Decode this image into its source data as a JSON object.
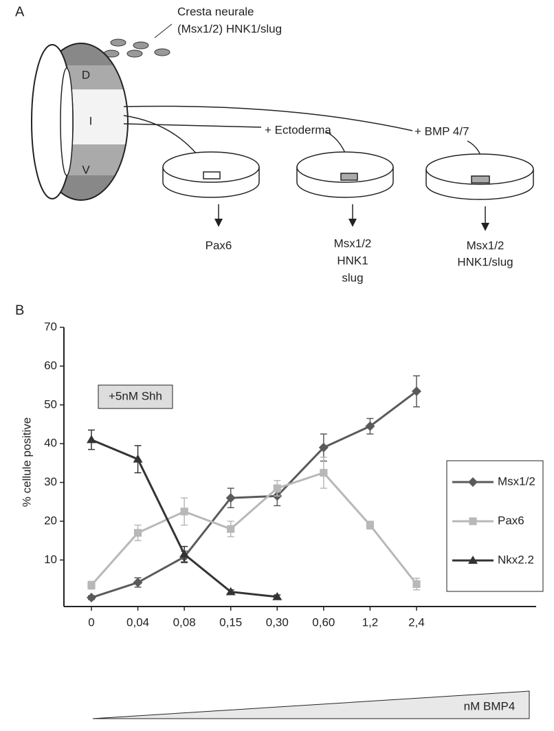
{
  "panel_a": {
    "label": "A",
    "crest_title": "Cresta neurale",
    "crest_markers": "(Msx1/2) HNK1/slug",
    "regions": [
      "D",
      "I",
      "V"
    ],
    "treatments": [
      "+ Ectoderma",
      "+ BMP 4/7"
    ],
    "results": [
      [
        "Pax6"
      ],
      [
        "Msx1/2",
        "HNK1",
        "slug"
      ],
      [
        "Msx1/2",
        "HNK1/slug"
      ]
    ]
  },
  "chart_data": {
    "type": "line",
    "panel_label": "B",
    "y_label": "% cellule positive",
    "annotation": "+5nM Shh",
    "x_label": "nM BMP4",
    "categories": [
      "0",
      "0,04",
      "0,08",
      "0,15",
      "0,30",
      "0,60",
      "1,2",
      "2,4"
    ],
    "ylim": [
      -2,
      70
    ],
    "yticks": [
      10,
      20,
      30,
      40,
      50,
      60,
      70
    ],
    "legend": "right",
    "series": [
      {
        "name": "Msx1/2",
        "color": "#5a5a5a",
        "marker": "diamond",
        "values": [
          0.3,
          4.2,
          10.8,
          26,
          26.5,
          39,
          44.5,
          53.5
        ],
        "errors": [
          0.5,
          1.2,
          1.5,
          2.5,
          2.5,
          3.5,
          2,
          4
        ]
      },
      {
        "name": "Pax6",
        "color": "#b8b8b8",
        "marker": "square",
        "values": [
          3.5,
          17,
          22.5,
          18,
          28.5,
          32.5,
          19,
          3.8
        ],
        "errors": [
          1,
          2,
          3.5,
          2,
          2,
          4,
          1,
          1.5
        ]
      },
      {
        "name": "Nkx2.2",
        "color": "#333333",
        "marker": "triangle",
        "values": [
          41,
          36,
          11.5,
          1.8,
          0.5,
          null,
          null,
          null
        ],
        "errors": [
          2.5,
          3.5,
          2,
          0.5,
          0.5,
          null,
          null,
          null
        ]
      }
    ]
  }
}
